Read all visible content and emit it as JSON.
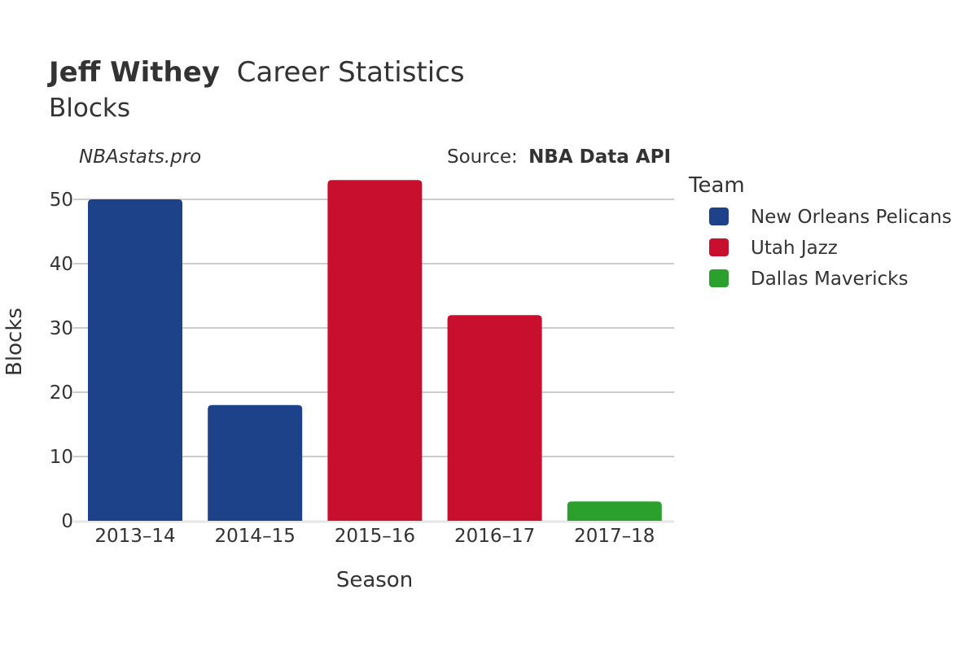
{
  "chart_data": {
    "type": "bar",
    "title_bold": "Jeff Withey",
    "title_rest": "Career Statistics",
    "subtitle": "Blocks",
    "watermark": "NBAstats.pro",
    "source_label": "Source:",
    "source_name": "NBA Data API",
    "xlabel": "Season",
    "ylabel": "Blocks",
    "ylim": [
      0,
      55
    ],
    "yticks": [
      0,
      10,
      20,
      30,
      40,
      50
    ],
    "grid": true,
    "legend_title": "Team",
    "legend_position": "right",
    "teams": [
      {
        "name": "New Orleans Pelicans",
        "color": "#1d428a"
      },
      {
        "name": "Utah Jazz",
        "color": "#c8102e"
      },
      {
        "name": "Dallas Mavericks",
        "color": "#2ca02c"
      }
    ],
    "categories": [
      "2013–14",
      "2014–15",
      "2015–16",
      "2016–17",
      "2017–18"
    ],
    "values": [
      50,
      18,
      53,
      32,
      3
    ],
    "team_index": [
      0,
      0,
      1,
      1,
      2
    ]
  }
}
